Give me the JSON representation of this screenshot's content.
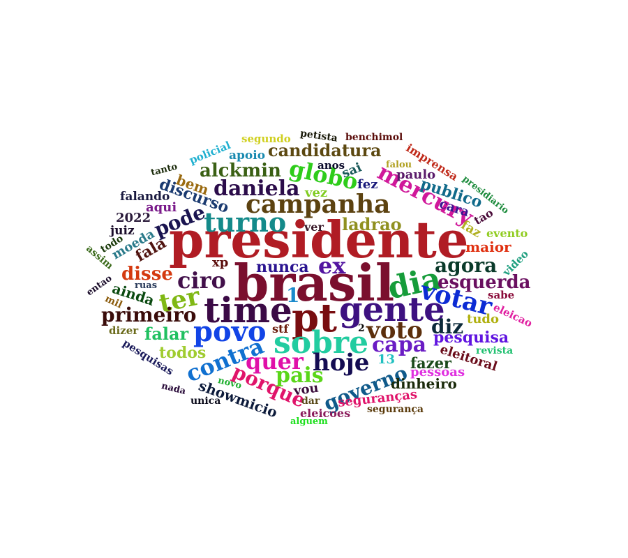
{
  "words": [
    {
      "text": "presidente",
      "color": "#b01c24"
    },
    {
      "text": "brasil",
      "color": "#7a0f2e"
    },
    {
      "text": "pt",
      "color": "#780d10"
    },
    {
      "text": "time",
      "color": "#3b0a45"
    },
    {
      "text": "gente",
      "color": "#3d1180"
    },
    {
      "text": "sobre",
      "color": "#22cca0"
    },
    {
      "text": "povo",
      "color": "#1244e6"
    },
    {
      "text": "dia",
      "color": "#169c3a"
    },
    {
      "text": "votar",
      "color": "#0c2bd4"
    },
    {
      "text": "campanha",
      "color": "#5c4210"
    },
    {
      "text": "turno",
      "color": "#148a8a"
    },
    {
      "text": "voto",
      "color": "#5c2f0c"
    },
    {
      "text": "hoje",
      "color": "#140c52"
    },
    {
      "text": "contra",
      "color": "#1070d0"
    },
    {
      "text": "quer",
      "color": "#e010a8"
    },
    {
      "text": "ciro",
      "color": "#42104a"
    },
    {
      "text": "daniela",
      "color": "#2b0c4a"
    },
    {
      "text": "globo",
      "color": "#2ecc1a"
    },
    {
      "text": "mercury",
      "color": "#d0189a"
    },
    {
      "text": "ter",
      "color": "#80b814"
    },
    {
      "text": "ex",
      "color": "#5214a0"
    },
    {
      "text": "governo",
      "color": "#105a8a"
    },
    {
      "text": "porque",
      "color": "#e0146a"
    },
    {
      "text": "capa",
      "color": "#6a1cc4"
    },
    {
      "text": "pais",
      "color": "#5ad61a"
    },
    {
      "text": "esquerda",
      "color": "#6a1060"
    },
    {
      "text": "agora",
      "color": "#0a3a2a"
    },
    {
      "text": "pode",
      "color": "#1a1450"
    },
    {
      "text": "alckmin",
      "color": "#3a6014"
    },
    {
      "text": "primeiro",
      "color": "#3a0c0a"
    },
    {
      "text": "disse",
      "color": "#d43a10"
    },
    {
      "text": "diz",
      "color": "#0c2a3a"
    },
    {
      "text": "candidatura",
      "color": "#5c4810"
    },
    {
      "text": "ladrao",
      "color": "#909020"
    },
    {
      "text": "falar",
      "color": "#20c060"
    },
    {
      "text": "nunca",
      "color": "#2a1490"
    },
    {
      "text": "publico",
      "color": "#106a8a"
    },
    {
      "text": "todos",
      "color": "#a0cc30"
    },
    {
      "text": "pesquisa",
      "color": "#6014e0"
    },
    {
      "text": "fazer",
      "color": "#1a4a1a"
    },
    {
      "text": "showmicio",
      "color": "#0c1a3a"
    },
    {
      "text": "discurso",
      "color": "#1a3a70"
    },
    {
      "text": "dinheiro",
      "color": "#1a2a0a"
    },
    {
      "text": "maior",
      "color": "#e03010"
    },
    {
      "text": "fala",
      "color": "#501410"
    },
    {
      "text": "ainda",
      "color": "#0a4a10"
    },
    {
      "text": "eleitoral",
      "color": "#6a0c1a"
    },
    {
      "text": "seguranças",
      "color": "#e0146a"
    },
    {
      "text": "imprensa",
      "color": "#c02a1a"
    },
    {
      "text": "1",
      "color": "#1a8acc"
    },
    {
      "text": "bem",
      "color": "#9a6a10"
    },
    {
      "text": "moeda",
      "color": "#2a7a8a"
    },
    {
      "text": "tudo",
      "color": "#b0b010"
    },
    {
      "text": "pessoas",
      "color": "#e030e0"
    },
    {
      "text": "vez",
      "color": "#80cc20"
    },
    {
      "text": "falando",
      "color": "#1a1a40"
    },
    {
      "text": "cara",
      "color": "#3a1490"
    },
    {
      "text": "aqui",
      "color": "#7a1a8a"
    },
    {
      "text": "2022",
      "color": "#2a1a3a"
    },
    {
      "text": "sai",
      "color": "#1a5a5a"
    },
    {
      "text": "paulo",
      "color": "#5a1a6a"
    },
    {
      "text": "vou",
      "color": "#3a0c3a"
    },
    {
      "text": "fez",
      "color": "#1a1a7a"
    },
    {
      "text": "juiz",
      "color": "#1a0c2a"
    },
    {
      "text": "13",
      "color": "#20c0c0"
    },
    {
      "text": "apoio",
      "color": "#1a8ab0"
    },
    {
      "text": "xp",
      "color": "#5a0c0a"
    },
    {
      "text": "stf",
      "color": "#6a1a0a"
    },
    {
      "text": "faz",
      "color": "#b0b020"
    },
    {
      "text": "tao",
      "color": "#4a0c3a"
    },
    {
      "text": "ver",
      "color": "#3a1a2a"
    },
    {
      "text": "eleicoes",
      "color": "#8a1a5a"
    },
    {
      "text": "eleicao",
      "color": "#e020a0"
    },
    {
      "text": "policial",
      "color": "#20b0d0"
    },
    {
      "text": "pesquisas",
      "color": "#1a1a5a"
    },
    {
      "text": "evento",
      "color": "#90cc20"
    },
    {
      "text": "segundo",
      "color": "#d0d020"
    },
    {
      "text": "video",
      "color": "#20a080"
    },
    {
      "text": "dizer",
      "color": "#6a6a1a"
    },
    {
      "text": "anos",
      "color": "#0a0a2a"
    },
    {
      "text": "petista",
      "color": "#1a1a0a"
    },
    {
      "text": "benchimol",
      "color": "#5a0c0a"
    },
    {
      "text": "assim",
      "color": "#3a6a1a"
    },
    {
      "text": "sabe",
      "color": "#8a0c3a"
    },
    {
      "text": "presidiario",
      "color": "#1a8a3a"
    },
    {
      "text": "revista",
      "color": "#20c070"
    },
    {
      "text": "todo",
      "color": "#1a3a0a"
    },
    {
      "text": "tanto",
      "color": "#1a2a0a"
    },
    {
      "text": "falou",
      "color": "#b0a020"
    },
    {
      "text": "unica",
      "color": "#0a0a1a"
    },
    {
      "text": "nada",
      "color": "#2a0c3a"
    },
    {
      "text": "novo",
      "color": "#20b030"
    },
    {
      "text": "dar",
      "color": "#5a4a1a"
    },
    {
      "text": "mil",
      "color": "#8a5a0a"
    },
    {
      "text": "ruas",
      "color": "#2a3a5a"
    },
    {
      "text": "entao",
      "color": "#1a0c2a"
    },
    {
      "text": "2",
      "color": "#0a0a0a"
    },
    {
      "text": "segurança",
      "color": "#5a3a0a"
    },
    {
      "text": "alguem",
      "color": "#20e020"
    }
  ]
}
